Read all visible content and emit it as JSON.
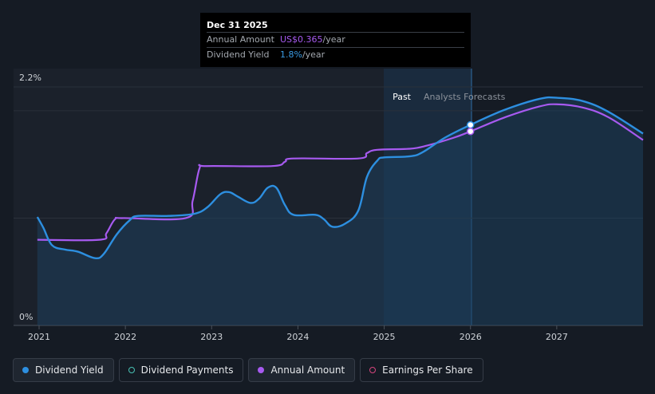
{
  "tooltip": {
    "date": "Dec 31 2025",
    "rows": [
      {
        "label": "Annual Amount",
        "value": "US$0.365",
        "unit": "/year",
        "color": "#a75af0"
      },
      {
        "label": "Dividend Yield",
        "value": "1.8%",
        "unit": "/year",
        "color": "#3a9be3"
      }
    ]
  },
  "legend": {
    "items": [
      {
        "label": "Dividend Yield",
        "color": "#2d8fe0",
        "style": "filled",
        "active": true
      },
      {
        "label": "Dividend Payments",
        "color": "#48c1b4",
        "style": "ring",
        "active": false
      },
      {
        "label": "Annual Amount",
        "color": "#a75af0",
        "style": "filled",
        "active": true
      },
      {
        "label": "Earnings Per Share",
        "color": "#d6457d",
        "style": "ring",
        "active": false
      }
    ]
  },
  "chart_data": {
    "type": "line",
    "y_ticks": [
      "2.2%",
      "0%"
    ],
    "ylim": [
      0,
      2.2
    ],
    "xlim": [
      2021.0,
      2028.0
    ],
    "x_ticks": [
      "2021",
      "2022",
      "2023",
      "2024",
      "2025",
      "2026",
      "2027"
    ],
    "past_label": "Past",
    "forecast_label": "Analysts Forecasts",
    "forecast_start": 2025.37,
    "tooltip_x": 2026.0,
    "grid": true,
    "colors": {
      "yield": "#2d8fe0",
      "amount": "#a75af0"
    },
    "series": [
      {
        "name": "Dividend Yield",
        "points": [
          [
            2020.98,
            1.0
          ],
          [
            2021.05,
            0.9
          ],
          [
            2021.15,
            0.74
          ],
          [
            2021.3,
            0.7
          ],
          [
            2021.45,
            0.68
          ],
          [
            2021.65,
            0.62
          ],
          [
            2021.75,
            0.66
          ],
          [
            2021.9,
            0.84
          ],
          [
            2022.05,
            0.97
          ],
          [
            2022.15,
            1.01
          ],
          [
            2022.5,
            1.01
          ],
          [
            2022.8,
            1.03
          ],
          [
            2022.95,
            1.09
          ],
          [
            2023.1,
            1.21
          ],
          [
            2023.2,
            1.23
          ],
          [
            2023.3,
            1.19
          ],
          [
            2023.45,
            1.13
          ],
          [
            2023.55,
            1.17
          ],
          [
            2023.65,
            1.27
          ],
          [
            2023.75,
            1.27
          ],
          [
            2023.85,
            1.11
          ],
          [
            2023.95,
            1.02
          ],
          [
            2024.2,
            1.02
          ],
          [
            2024.3,
            0.98
          ],
          [
            2024.4,
            0.91
          ],
          [
            2024.55,
            0.94
          ],
          [
            2024.7,
            1.06
          ],
          [
            2024.8,
            1.37
          ],
          [
            2024.92,
            1.52
          ],
          [
            2025.0,
            1.55
          ],
          [
            2025.3,
            1.56
          ],
          [
            2025.45,
            1.6
          ],
          [
            2025.7,
            1.73
          ],
          [
            2026.0,
            1.85
          ],
          [
            2026.4,
            1.99
          ],
          [
            2026.8,
            2.09
          ],
          [
            2027.0,
            2.1
          ],
          [
            2027.3,
            2.07
          ],
          [
            2027.6,
            1.97
          ],
          [
            2028.0,
            1.77
          ]
        ]
      },
      {
        "name": "Annual Amount",
        "points": [
          [
            2020.98,
            0.79
          ],
          [
            2021.7,
            0.79
          ],
          [
            2021.78,
            0.85
          ],
          [
            2021.88,
            0.98
          ],
          [
            2021.98,
            0.99
          ],
          [
            2022.7,
            0.99
          ],
          [
            2022.78,
            1.15
          ],
          [
            2022.86,
            1.45
          ],
          [
            2022.94,
            1.47
          ],
          [
            2023.7,
            1.47
          ],
          [
            2023.85,
            1.51
          ],
          [
            2023.95,
            1.54
          ],
          [
            2024.7,
            1.54
          ],
          [
            2024.8,
            1.59
          ],
          [
            2024.92,
            1.62
          ],
          [
            2025.3,
            1.63
          ],
          [
            2025.5,
            1.66
          ],
          [
            2025.8,
            1.73
          ],
          [
            2026.0,
            1.79
          ],
          [
            2026.4,
            1.92
          ],
          [
            2026.8,
            2.02
          ],
          [
            2027.0,
            2.04
          ],
          [
            2027.3,
            2.01
          ],
          [
            2027.6,
            1.92
          ],
          [
            2028.0,
            1.71
          ]
        ]
      }
    ]
  }
}
